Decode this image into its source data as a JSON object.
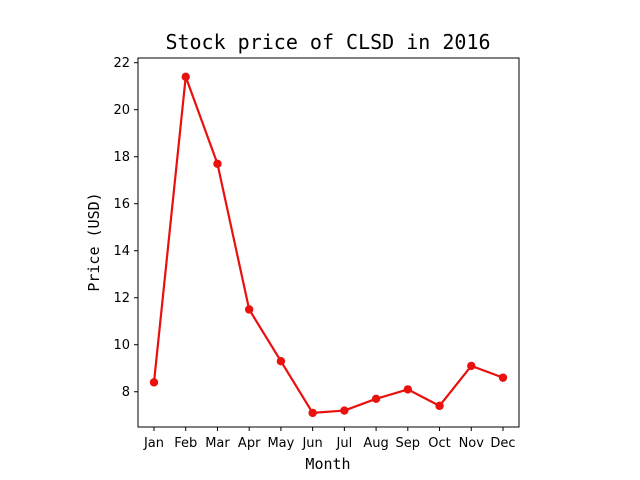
{
  "chart_data": {
    "type": "line",
    "title": "Stock price of CLSD in 2016",
    "xlabel": "Month",
    "ylabel": "Price (USD)",
    "categories": [
      "Jan",
      "Feb",
      "Mar",
      "Apr",
      "May",
      "Jun",
      "Jul",
      "Aug",
      "Sep",
      "Oct",
      "Nov",
      "Dec"
    ],
    "series": [
      {
        "values": [
          8.4,
          21.4,
          17.7,
          11.5,
          9.3,
          7.1,
          7.2,
          7.7,
          8.1,
          7.4,
          9.1,
          8.6
        ],
        "color": "#e8110e"
      }
    ],
    "ylim": [
      6.5,
      22.2
    ],
    "yticks": [
      8,
      10,
      12,
      14,
      16,
      18,
      20,
      22
    ],
    "grid": false,
    "legend": "none"
  }
}
